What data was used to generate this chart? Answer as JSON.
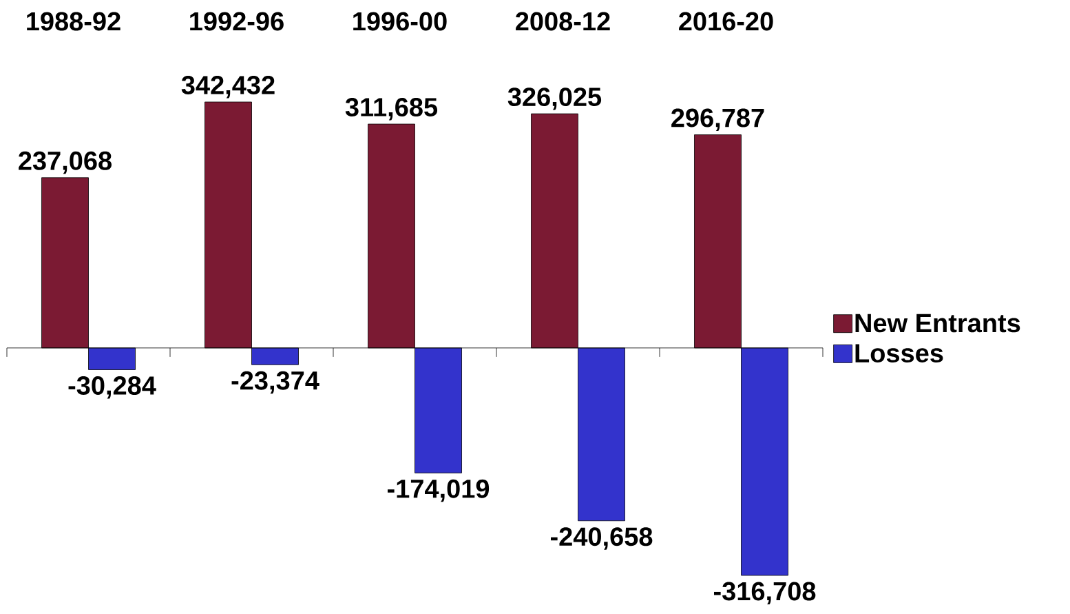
{
  "chart_data": {
    "type": "bar",
    "categories": [
      "1988-92",
      "1992-96",
      "1996-00",
      "2008-12",
      "2016-20"
    ],
    "series": [
      {
        "name": "New Entrants",
        "color": "#7b1a33",
        "values": [
          237068,
          342432,
          311685,
          326025,
          296787
        ],
        "value_labels": [
          "237,068",
          "342,432",
          "311,685",
          "326,025",
          "296,787"
        ]
      },
      {
        "name": "Losses",
        "color": "#3333cc",
        "values": [
          -30284,
          -23374,
          -174019,
          -240658,
          -316708
        ],
        "value_labels": [
          "-30,284",
          "-23,374",
          "-174,019",
          "-240,658",
          "-316,708"
        ]
      }
    ],
    "legend": "right"
  }
}
